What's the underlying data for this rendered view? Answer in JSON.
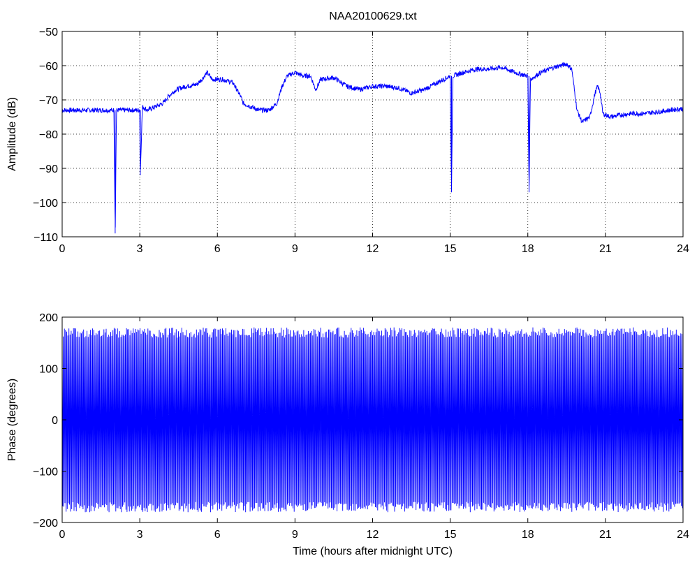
{
  "figure": {
    "title": "NAA20100629.txt",
    "line_color": "#0000ff"
  },
  "chart_data": [
    {
      "type": "line",
      "title": "NAA20100629.txt",
      "xlabel": "",
      "ylabel": "Amplitude (dB)",
      "xlim": [
        0,
        24
      ],
      "ylim": [
        -110,
        -50
      ],
      "xticks": [
        0,
        3,
        6,
        9,
        12,
        15,
        18,
        21,
        24
      ],
      "yticks": [
        -110,
        -100,
        -90,
        -80,
        -70,
        -60,
        -50
      ],
      "grid": true,
      "series": [
        {
          "color": "#0000ff",
          "x": [
            0,
            0.5,
            1.0,
            1.5,
            2.0,
            2.05,
            2.1,
            2.5,
            3.0,
            3.02,
            3.1,
            3.3,
            3.6,
            3.9,
            4.1,
            4.4,
            4.8,
            5.2,
            5.4,
            5.6,
            5.8,
            6.2,
            6.6,
            6.9,
            7.0,
            7.3,
            7.6,
            8.0,
            8.3,
            8.5,
            8.7,
            9.0,
            9.3,
            9.6,
            9.8,
            10.0,
            10.5,
            11.0,
            11.5,
            12.0,
            12.5,
            13.0,
            13.5,
            14.0,
            14.5,
            15.0,
            15.05,
            15.1,
            15.5,
            16.0,
            16.5,
            17.0,
            17.5,
            18.0,
            18.05,
            18.1,
            18.5,
            19.0,
            19.5,
            19.7,
            19.9,
            20.1,
            20.4,
            20.6,
            20.7,
            20.8,
            20.9,
            21.2,
            21.5,
            22.0,
            22.5,
            23.0,
            23.5,
            24.0
          ],
          "y": [
            -73,
            -73,
            -73,
            -73,
            -73,
            -109,
            -73,
            -73,
            -73,
            -92,
            -72,
            -73,
            -72,
            -71,
            -69,
            -67,
            -66,
            -65.5,
            -64,
            -62,
            -64,
            -64,
            -65,
            -69,
            -71,
            -72,
            -73,
            -73,
            -71,
            -66,
            -63,
            -62,
            -63,
            -63,
            -67,
            -64,
            -63.5,
            -66,
            -67,
            -66,
            -66,
            -66.5,
            -68,
            -67,
            -65,
            -63,
            -97,
            -63,
            -62,
            -61,
            -61,
            -60.5,
            -62,
            -63,
            -97,
            -64,
            -62,
            -60.5,
            -59.5,
            -61,
            -73,
            -76.5,
            -75,
            -68,
            -66,
            -68,
            -74,
            -75,
            -74.5,
            -74,
            -74,
            -73.5,
            -73,
            -72.5
          ]
        }
      ]
    },
    {
      "type": "line",
      "title": "",
      "xlabel": "Time (hours after midnight UTC)",
      "ylabel": "Phase (degrees)",
      "xlim": [
        0,
        24
      ],
      "ylim": [
        -200,
        200
      ],
      "xticks": [
        0,
        3,
        6,
        9,
        12,
        15,
        18,
        21,
        24
      ],
      "yticks": [
        -200,
        -100,
        0,
        100,
        200
      ],
      "grid": false,
      "series": [
        {
          "color": "#0000ff",
          "description_of_shape": "",
          "x_range": [
            0,
            24
          ],
          "y_range": [
            -180,
            180
          ]
        }
      ]
    }
  ]
}
